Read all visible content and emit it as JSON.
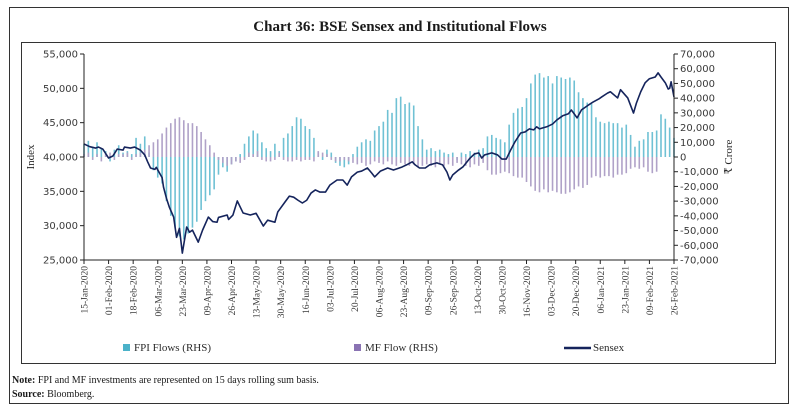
{
  "chart_data": {
    "type": "bar+line",
    "title": "Chart 36: BSE Sensex and Institutional Flows",
    "x_start": "15-Jan-2020",
    "x_unit": "days since 15-Jan-2020",
    "x_range_days": [
      0,
      408
    ],
    "x_tick_step_days": 17,
    "x_ticks": [
      "15-Jan-2020",
      "01-Feb-2020",
      "18-Feb-2020",
      "06-Mar-2020",
      "23-Mar-2020",
      "09-Apr-2020",
      "26-Apr-2020",
      "13-May-2020",
      "30-May-2020",
      "16-Jun-2020",
      "03-Jul-2020",
      "20-Jul-2020",
      "06-Aug-2020",
      "23-Aug-2020",
      "09-Sep-2020",
      "26-Sep-2020",
      "13-Oct-2020",
      "30-Oct-2020",
      "16-Nov-2020",
      "03-Dec-2020",
      "20-Dec-2020",
      "06-Jan-2021",
      "23-Jan-2021",
      "09-Feb-2021",
      "26-Feb-2021"
    ],
    "y_left": {
      "label": "Index",
      "range": [
        25000,
        55000
      ],
      "ticks": [
        {
          "value": 55000,
          "label": "55,000"
        },
        {
          "value": 50000,
          "label": "50,000"
        },
        {
          "value": 45000,
          "label": "45,000"
        },
        {
          "value": 40000,
          "label": "40,000"
        },
        {
          "value": 35000,
          "label": "35,000"
        },
        {
          "value": 30000,
          "label": "30,000"
        },
        {
          "value": 25000,
          "label": "25,000"
        }
      ]
    },
    "y_right": {
      "label": "₹ Crore",
      "range": [
        -70000,
        70000
      ],
      "ticks": [
        {
          "value": 70000,
          "label": "70,000"
        },
        {
          "value": 60000,
          "label": "60,000"
        },
        {
          "value": 50000,
          "label": "50,000"
        },
        {
          "value": 40000,
          "label": "40,000"
        },
        {
          "value": 30000,
          "label": "30,000"
        },
        {
          "value": 20000,
          "label": "20,000"
        },
        {
          "value": 10000,
          "label": "10,000"
        },
        {
          "value": 0,
          "label": "0"
        },
        {
          "value": -10000,
          "label": "-10,000"
        },
        {
          "value": -20000,
          "label": "-20,000"
        },
        {
          "value": -30000,
          "label": "-30,000"
        },
        {
          "value": -40000,
          "label": "-40,000"
        },
        {
          "value": -50000,
          "label": "-50,000"
        },
        {
          "value": -60000,
          "label": "-60,000"
        },
        {
          "value": -70000,
          "label": "-70,000"
        }
      ]
    },
    "grid": false,
    "legend_position": "bottom",
    "series": [
      {
        "name": "FPI Flows (RHS)",
        "type": "bar",
        "axis": "right",
        "color": "#6fc1d4",
        "legend_color": "#4bb2c9",
        "bar_step_days": 3,
        "values": [
          9000,
          11000,
          7000,
          10000,
          6000,
          4000,
          -3000,
          5000,
          8000,
          3000,
          4000,
          2000,
          13000,
          9000,
          14000,
          3000,
          -9000,
          -14000,
          -18000,
          -30000,
          -40000,
          -48000,
          -54000,
          -56000,
          -52000,
          -48000,
          -44000,
          -36000,
          -30000,
          -26000,
          -22000,
          -12000,
          -7000,
          -10000,
          -5000,
          -3000,
          2000,
          9000,
          14000,
          18000,
          16000,
          10000,
          6000,
          4000,
          9000,
          4000,
          13000,
          16000,
          21000,
          27000,
          26000,
          21000,
          19000,
          13000,
          3000,
          -2000,
          5000,
          3000,
          -4000,
          -6000,
          -7000,
          -5000,
          2000,
          7000,
          10000,
          12000,
          11000,
          18000,
          21000,
          24000,
          32000,
          30000,
          40000,
          41000,
          36000,
          37000,
          35000,
          21000,
          12000,
          5000,
          6000,
          4000,
          5000,
          3000,
          2000,
          3000,
          -2000,
          3000,
          2000,
          4000,
          3000,
          5000,
          6000,
          14000,
          15000,
          13000,
          12000,
          10000,
          22000,
          30000,
          33000,
          34000,
          40000,
          50000,
          56000,
          57000,
          54000,
          55000,
          50000,
          55000,
          54000,
          53000,
          54000,
          52000,
          44000,
          40000,
          37000,
          36000,
          27000,
          24000,
          23000,
          24000,
          23000,
          23000,
          20000,
          22000,
          15000,
          7000,
          11000,
          12000,
          17000,
          17000,
          18000,
          29000,
          26000,
          20000,
          13000
        ]
      },
      {
        "name": "MF Flow (RHS)",
        "type": "bar",
        "axis": "right",
        "color": "#b0a2c8",
        "legend_color": "#8a73b3",
        "bar_step_days": 3,
        "values": [
          2000,
          3000,
          -2000,
          2000,
          -3000,
          2000,
          3000,
          -2000,
          2000,
          2000,
          3000,
          -2000,
          2000,
          3000,
          5000,
          8000,
          10000,
          12000,
          16000,
          20000,
          23000,
          26000,
          27000,
          25000,
          23000,
          23000,
          21000,
          17000,
          12000,
          8000,
          3000,
          -2000,
          -4000,
          -6000,
          -5000,
          -3000,
          -4000,
          -2000,
          3000,
          2000,
          4000,
          -2000,
          -3000,
          -3000,
          -2000,
          3000,
          -2000,
          -3000,
          -3000,
          -2000,
          -3000,
          -2000,
          -2000,
          -3000,
          4000,
          3000,
          2000,
          -2000,
          -3000,
          -3000,
          -2000,
          -3000,
          -4000,
          -5000,
          -4000,
          -6000,
          -5000,
          -3000,
          -4000,
          -5000,
          -3000,
          -5000,
          -6000,
          -4000,
          -5000,
          -6000,
          -5000,
          -7000,
          -6000,
          -5000,
          -6000,
          -7000,
          -5000,
          -6000,
          -5000,
          -6000,
          -4000,
          -5000,
          -6000,
          -7000,
          -5000,
          -6000,
          -4000,
          -9000,
          -12000,
          -12000,
          -11000,
          -10000,
          -11000,
          -13000,
          -14000,
          -14000,
          -17000,
          -20000,
          -23000,
          -24000,
          -22000,
          -24000,
          -23000,
          -24000,
          -25000,
          -25000,
          -24000,
          -22000,
          -20000,
          -21000,
          -19000,
          -14000,
          -13000,
          -14000,
          -13000,
          -13000,
          -14000,
          -12000,
          -12000,
          -11000,
          -8000,
          -7000,
          -8000,
          -7000,
          -10000,
          -11000,
          -10000,
          0,
          0,
          0,
          0
        ]
      },
      {
        "name": "Sensex",
        "type": "line",
        "axis": "left",
        "color": "#15245c",
        "points": [
          [
            0,
            41900
          ],
          [
            4,
            41500
          ],
          [
            8,
            41300
          ],
          [
            10,
            41450
          ],
          [
            13,
            41150
          ],
          [
            17,
            39850
          ],
          [
            20,
            40150
          ],
          [
            23,
            41150
          ],
          [
            27,
            41000
          ],
          [
            28,
            41450
          ],
          [
            32,
            41300
          ],
          [
            35,
            41450
          ],
          [
            39,
            41000
          ],
          [
            42,
            40300
          ],
          [
            44,
            39300
          ],
          [
            46,
            38400
          ],
          [
            49,
            38200
          ],
          [
            50,
            38500
          ],
          [
            54,
            37000
          ],
          [
            55,
            35600
          ],
          [
            57,
            34000
          ],
          [
            59,
            32700
          ],
          [
            62,
            31250
          ],
          [
            64,
            28300
          ],
          [
            66,
            29600
          ],
          [
            68,
            26000
          ],
          [
            71,
            29800
          ],
          [
            73,
            29050
          ],
          [
            75,
            29350
          ],
          [
            79,
            27600
          ],
          [
            82,
            29350
          ],
          [
            86,
            31250
          ],
          [
            89,
            30600
          ],
          [
            92,
            30500
          ],
          [
            93,
            31200
          ],
          [
            99,
            31550
          ],
          [
            100,
            30900
          ],
          [
            103,
            31550
          ],
          [
            106,
            33600
          ],
          [
            110,
            31850
          ],
          [
            115,
            31550
          ],
          [
            119,
            31800
          ],
          [
            124,
            29950
          ],
          [
            127,
            30800
          ],
          [
            132,
            30500
          ],
          [
            134,
            32000
          ],
          [
            139,
            33450
          ],
          [
            142,
            34300
          ],
          [
            145,
            34150
          ],
          [
            148,
            33700
          ],
          [
            151,
            33300
          ],
          [
            154,
            33700
          ],
          [
            157,
            34750
          ],
          [
            160,
            35200
          ],
          [
            163,
            34900
          ],
          [
            167,
            34900
          ],
          [
            170,
            35900
          ],
          [
            175,
            36650
          ],
          [
            179,
            36650
          ],
          [
            182,
            35900
          ],
          [
            185,
            37100
          ],
          [
            189,
            37800
          ],
          [
            192,
            37950
          ],
          [
            196,
            38400
          ],
          [
            199,
            37650
          ],
          [
            201,
            37100
          ],
          [
            205,
            37950
          ],
          [
            210,
            38400
          ],
          [
            214,
            38100
          ],
          [
            220,
            38550
          ],
          [
            223,
            38850
          ],
          [
            227,
            39300
          ],
          [
            229,
            38850
          ],
          [
            232,
            38400
          ],
          [
            236,
            38400
          ],
          [
            239,
            38850
          ],
          [
            244,
            39150
          ],
          [
            248,
            38850
          ],
          [
            251,
            37800
          ],
          [
            253,
            36650
          ],
          [
            255,
            37400
          ],
          [
            259,
            38100
          ],
          [
            262,
            38550
          ],
          [
            267,
            39850
          ],
          [
            270,
            40450
          ],
          [
            273,
            40600
          ],
          [
            275,
            39850
          ],
          [
            277,
            40300
          ],
          [
            282,
            40600
          ],
          [
            286,
            40300
          ],
          [
            289,
            39700
          ],
          [
            292,
            39700
          ],
          [
            295,
            41000
          ],
          [
            298,
            42200
          ],
          [
            302,
            43500
          ],
          [
            305,
            43650
          ],
          [
            308,
            44100
          ],
          [
            311,
            43950
          ],
          [
            313,
            44400
          ],
          [
            315,
            44100
          ],
          [
            320,
            44400
          ],
          [
            324,
            44800
          ],
          [
            327,
            45400
          ],
          [
            331,
            46000
          ],
          [
            335,
            46300
          ],
          [
            337,
            46850
          ],
          [
            341,
            45700
          ],
          [
            344,
            46850
          ],
          [
            348,
            47450
          ],
          [
            352,
            48000
          ],
          [
            356,
            48450
          ],
          [
            358,
            48750
          ],
          [
            362,
            49300
          ],
          [
            364,
            49500
          ],
          [
            369,
            48600
          ],
          [
            371,
            49800
          ],
          [
            376,
            48600
          ],
          [
            380,
            46400
          ],
          [
            382,
            47850
          ],
          [
            385,
            49500
          ],
          [
            388,
            50800
          ],
          [
            391,
            51400
          ],
          [
            395,
            51650
          ],
          [
            397,
            52250
          ],
          [
            399,
            51650
          ],
          [
            402,
            50800
          ],
          [
            404,
            49900
          ],
          [
            405,
            50000
          ],
          [
            406,
            50950
          ],
          [
            408,
            48750
          ]
        ]
      }
    ]
  },
  "legend": {
    "fpi_label": "FPI Flows (RHS)",
    "mf_label": "MF Flow (RHS)",
    "sensex_label": "Sensex"
  },
  "footer": {
    "note_label": "Note:",
    "note_text": "FPI and MF investments are represented on 15 days rolling sum basis.",
    "source_label": "Source:",
    "source_text": "Bloomberg."
  }
}
